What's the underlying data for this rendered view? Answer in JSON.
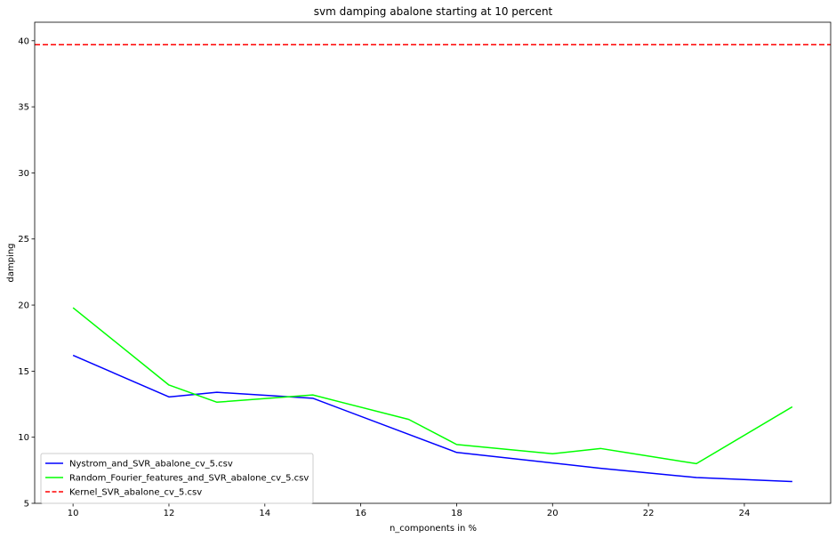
{
  "chart_data": {
    "type": "line",
    "title": "svm damping abalone starting at 10 percent",
    "xlabel": "n_components in %",
    "ylabel": "damping",
    "xlim": [
      9.2,
      25.8
    ],
    "ylim": [
      5,
      41.4
    ],
    "xticks": [
      10,
      12,
      14,
      16,
      18,
      20,
      22,
      24
    ],
    "yticks": [
      5,
      10,
      15,
      20,
      25,
      30,
      35,
      40
    ],
    "grid": false,
    "legend_position": "lower-left",
    "series": [
      {
        "name": "Nystrom_and_SVR_abalone_cv_5.csv",
        "color": "#0000ff",
        "style": "solid",
        "x": [
          10,
          12,
          13,
          15,
          18,
          21,
          23,
          25
        ],
        "y": [
          16.2,
          13.05,
          13.4,
          12.95,
          8.85,
          7.65,
          6.95,
          6.65
        ]
      },
      {
        "name": "Random_Fourier_features_and_SVR_abalone_cv_5.csv",
        "color": "#00ff00",
        "style": "solid",
        "x": [
          10,
          12,
          13,
          15,
          17,
          18,
          20,
          21,
          23,
          25
        ],
        "y": [
          19.8,
          13.95,
          12.65,
          13.2,
          11.35,
          9.45,
          8.75,
          9.15,
          8.0,
          12.3
        ]
      },
      {
        "name": "Kernel_SVR_abalone_cv_5.csv",
        "color": "#ff0000",
        "style": "dashed",
        "type": "hline",
        "y": 39.7
      }
    ]
  }
}
